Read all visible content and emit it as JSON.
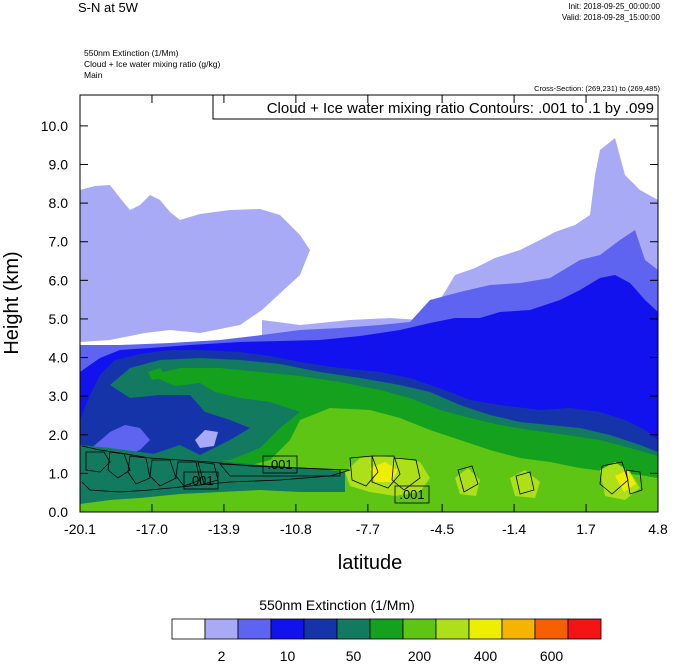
{
  "header": {
    "title": "S-N at 5W",
    "init": "Init: 2018-09-25_00:00:00",
    "valid": "Valid: 2018-09-28_15:00:00",
    "field_lines": [
      "550nm Extinction   (1/Mm)",
      "Cloud + Ice water mixing ratio   (g/kg)",
      "Main"
    ],
    "cross_section": "Cross-Section: (269,231) to (269,485)"
  },
  "chart_data": {
    "type": "heatmap",
    "title": "Cloud + Ice water mixing ratio Contours: .001 to .1 by .099",
    "xlabel": "latitude",
    "ylabel": "Height (km)",
    "xlim": [
      -20.1,
      4.8
    ],
    "ylim": [
      0.0,
      10.8
    ],
    "x_ticks": [
      "-20.1",
      "-17.0",
      "-13.9",
      "-10.8",
      "-7.7",
      "-4.5",
      "-1.4",
      "1.7",
      "4.8"
    ],
    "y_ticks": [
      "0.0",
      "1.0",
      "2.0",
      "3.0",
      "4.0",
      "5.0",
      "6.0",
      "7.0",
      "8.0",
      "9.0",
      "10.0"
    ],
    "contour_labels": [
      {
        "text": ".001",
        "x": -15.4,
        "y": 0.75
      },
      {
        "text": ".001",
        "x": -11.8,
        "y": 1.2
      },
      {
        "text": ".001",
        "x": -6.1,
        "y": 0.45
      }
    ],
    "colorbar": {
      "title": "550nm Extinction  (1/Mm)",
      "colors": [
        "#ffffff",
        "#a8aaf5",
        "#5e63f0",
        "#1212ee",
        "#1634aa",
        "#127a5e",
        "#14a11e",
        "#5ec514",
        "#aee01a",
        "#eeee00",
        "#f5b400",
        "#f55f00",
        "#f51414"
      ],
      "labels": [
        "2",
        "10",
        "50",
        "200",
        "400",
        "600"
      ],
      "label_after_box": [
        1,
        3,
        5,
        7,
        9,
        11
      ]
    }
  }
}
